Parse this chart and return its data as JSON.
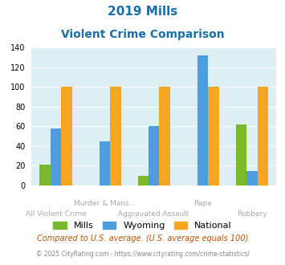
{
  "title_line1": "2019 Mills",
  "title_line2": "Violent Crime Comparison",
  "mills": [
    21,
    0,
    10,
    0,
    62
  ],
  "wyoming": [
    58,
    45,
    60,
    132,
    15
  ],
  "national": [
    100,
    100,
    100,
    100,
    100
  ],
  "mills_color": "#7aba2a",
  "wyoming_color": "#4d9de0",
  "national_color": "#f5a623",
  "bg_color": "#ddeef5",
  "title_color": "#1a6ea8",
  "ylabel_max": 140,
  "yticks": [
    0,
    20,
    40,
    60,
    80,
    100,
    120,
    140
  ],
  "row1_labels": {
    "1": "Murder & Mans...",
    "3": "Rape"
  },
  "row2_labels": {
    "0": "All Violent Crime",
    "2": "Aggravated Assault",
    "4": "Robbery"
  },
  "label_color": "#aaaaaa",
  "footnote1": "Compared to U.S. average. (U.S. average equals 100)",
  "footnote2": "© 2025 CityRating.com - https://www.cityrating.com/crime-statistics/",
  "footnote1_color": "#c05000",
  "footnote2_color": "#888888",
  "legend_labels": [
    "Mills",
    "Wyoming",
    "National"
  ]
}
